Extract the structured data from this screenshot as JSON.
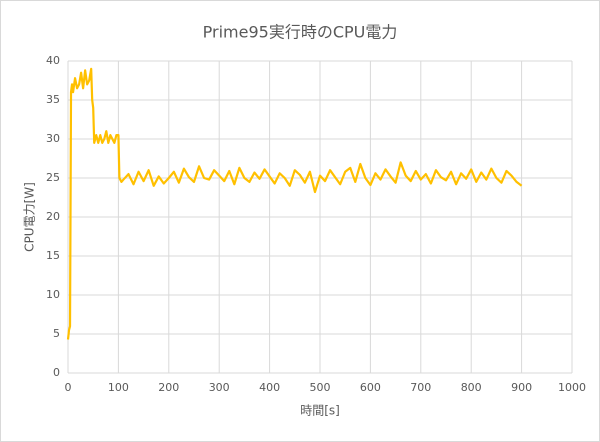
{
  "chart_data": {
    "type": "line",
    "title": "Prime95実行時のCPU電力",
    "x_label": "時間[s]",
    "y_label": "CPU電力[W]",
    "color": "#ffc000",
    "grid": true,
    "xlim": [
      0,
      1000
    ],
    "xticks": [
      0,
      100,
      200,
      300,
      400,
      500,
      600,
      700,
      800,
      900,
      1000
    ],
    "ylim": [
      0,
      40
    ],
    "yticks": [
      0,
      5,
      10,
      15,
      20,
      25,
      30,
      35,
      40
    ],
    "x": [
      0,
      2,
      4,
      6,
      8,
      10,
      14,
      18,
      22,
      26,
      30,
      34,
      38,
      42,
      46,
      48,
      50,
      52,
      56,
      60,
      64,
      68,
      72,
      76,
      80,
      84,
      88,
      92,
      96,
      100,
      102,
      106,
      110,
      120,
      130,
      140,
      150,
      160,
      170,
      180,
      190,
      200,
      210,
      220,
      230,
      240,
      250,
      260,
      270,
      280,
      290,
      300,
      310,
      320,
      330,
      340,
      350,
      360,
      370,
      380,
      390,
      400,
      410,
      420,
      430,
      440,
      450,
      460,
      470,
      480,
      490,
      500,
      510,
      520,
      530,
      540,
      550,
      560,
      570,
      580,
      590,
      600,
      610,
      620,
      630,
      640,
      650,
      660,
      670,
      680,
      690,
      700,
      710,
      720,
      730,
      740,
      750,
      760,
      770,
      780,
      790,
      800,
      810,
      820,
      830,
      840,
      850,
      860,
      870,
      880,
      890,
      900
    ],
    "values": [
      4.3,
      5.5,
      6,
      36,
      37,
      36,
      37.8,
      36.5,
      37,
      38.5,
      36.5,
      38.8,
      37,
      37.5,
      39,
      35,
      34,
      29.5,
      30.5,
      29.5,
      30.5,
      29.5,
      30,
      31,
      29.5,
      30.5,
      30,
      29.5,
      30.5,
      30.5,
      25,
      24.5,
      24.8,
      25.5,
      24.2,
      25.8,
      24.6,
      26.0,
      24.0,
      25.2,
      24.3,
      25.0,
      25.8,
      24.4,
      26.2,
      25.1,
      24.5,
      26.5,
      25.0,
      24.8,
      26.0,
      25.3,
      24.6,
      25.9,
      24.2,
      26.3,
      25.0,
      24.5,
      25.7,
      24.9,
      26.1,
      25.2,
      24.3,
      25.6,
      25.0,
      24.0,
      26.0,
      25.4,
      24.4,
      25.8,
      23.2,
      25.3,
      24.6,
      26.0,
      25.1,
      24.2,
      25.8,
      26.3,
      24.5,
      26.8,
      25.0,
      24.1,
      25.6,
      24.8,
      26.1,
      25.2,
      24.4,
      27.0,
      25.3,
      24.6,
      25.9,
      24.8,
      25.5,
      24.3,
      26.0,
      25.1,
      24.7,
      25.8,
      24.2,
      25.6,
      24.9,
      26.1,
      24.5,
      25.7,
      24.8,
      26.2,
      25.0,
      24.4,
      25.9,
      25.3,
      24.5,
      24.0
    ]
  }
}
